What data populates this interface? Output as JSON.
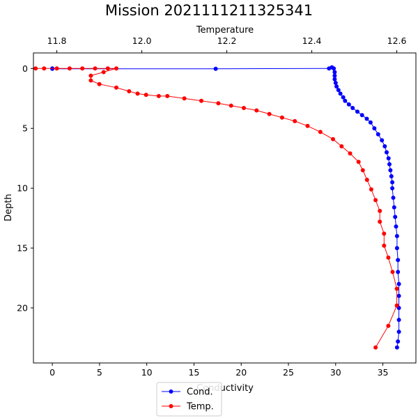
{
  "chart_data": {
    "type": "line",
    "title": "Mission 2021111211325341",
    "y_axis": {
      "label": "Depth",
      "lim": [
        -1.3,
        24.6
      ],
      "inverted": true,
      "ticks": [
        0,
        5,
        10,
        15,
        20
      ]
    },
    "x_bottom": {
      "label": "Conductivity",
      "lim": [
        -2.0,
        38.5
      ],
      "ticks": [
        0,
        5,
        10,
        15,
        20,
        25,
        30,
        35
      ]
    },
    "x_top": {
      "label": "Temperature",
      "lim": [
        11.745,
        12.645
      ],
      "ticks": [
        "11.8",
        "12.0",
        "12.2",
        "12.4",
        "12.6"
      ],
      "tick_values": [
        11.8,
        12.0,
        12.2,
        12.4,
        12.6
      ]
    },
    "legend": {
      "placement": "bottom-center",
      "entries": [
        "Cond.",
        "Temp."
      ]
    },
    "grid": false,
    "series": [
      {
        "name": "Cond.",
        "axis": "bottom",
        "color": "#0000ff",
        "x": [
          0.0,
          0.0,
          17.3,
          29.3,
          29.6,
          29.8,
          29.9,
          29.9,
          29.9,
          30.0,
          30.1,
          30.3,
          30.5,
          30.8,
          31.0,
          31.4,
          31.8,
          32.3,
          32.8,
          33.3,
          33.7,
          34.1,
          34.5,
          34.9,
          35.2,
          35.4,
          35.6,
          35.7,
          35.8,
          35.9,
          36.0,
          36.0,
          36.1,
          36.2,
          36.3,
          36.4,
          36.5,
          36.5,
          36.6,
          36.6,
          36.7,
          36.7,
          36.7,
          36.7,
          36.7,
          36.6,
          36.5
        ],
        "y": [
          0.0,
          0.02,
          0.02,
          0.0,
          -0.1,
          0.0,
          0.3,
          0.6,
          0.9,
          1.2,
          1.5,
          1.8,
          2.1,
          2.4,
          2.7,
          3.0,
          3.3,
          3.6,
          3.9,
          4.2,
          4.5,
          5.0,
          5.5,
          6.0,
          6.5,
          7.0,
          7.5,
          8.0,
          8.5,
          9.0,
          9.5,
          10.0,
          10.8,
          11.6,
          12.4,
          13.2,
          14.0,
          15.0,
          16.0,
          17.0,
          18.0,
          19.0,
          20.0,
          21.0,
          22.0,
          22.8,
          23.3
        ]
      },
      {
        "name": "Temp.",
        "axis": "top",
        "color": "#ff0000",
        "x": [
          11.75,
          11.77,
          11.8,
          11.83,
          11.86,
          11.89,
          11.92,
          11.94,
          11.91,
          11.88,
          11.88,
          11.9,
          11.94,
          11.97,
          11.99,
          12.01,
          12.04,
          12.06,
          12.1,
          12.14,
          12.18,
          12.21,
          12.24,
          12.27,
          12.3,
          12.33,
          12.36,
          12.39,
          12.42,
          12.45,
          12.47,
          12.49,
          12.51,
          12.52,
          12.53,
          12.54,
          12.55,
          12.56,
          12.56,
          12.57,
          12.57,
          12.58,
          12.59,
          12.6,
          12.6,
          12.58,
          12.55
        ],
        "y": [
          0.0,
          0.0,
          0.0,
          0.0,
          0.0,
          0.0,
          0.0,
          0.0,
          0.3,
          0.6,
          1.0,
          1.3,
          1.6,
          1.9,
          2.1,
          2.2,
          2.3,
          2.3,
          2.5,
          2.7,
          2.9,
          3.1,
          3.3,
          3.5,
          3.8,
          4.1,
          4.4,
          4.8,
          5.3,
          5.9,
          6.5,
          7.1,
          7.8,
          8.5,
          9.3,
          10.1,
          11.0,
          11.9,
          12.8,
          13.8,
          14.8,
          15.8,
          17.0,
          18.4,
          19.8,
          21.5,
          23.3
        ]
      }
    ]
  }
}
